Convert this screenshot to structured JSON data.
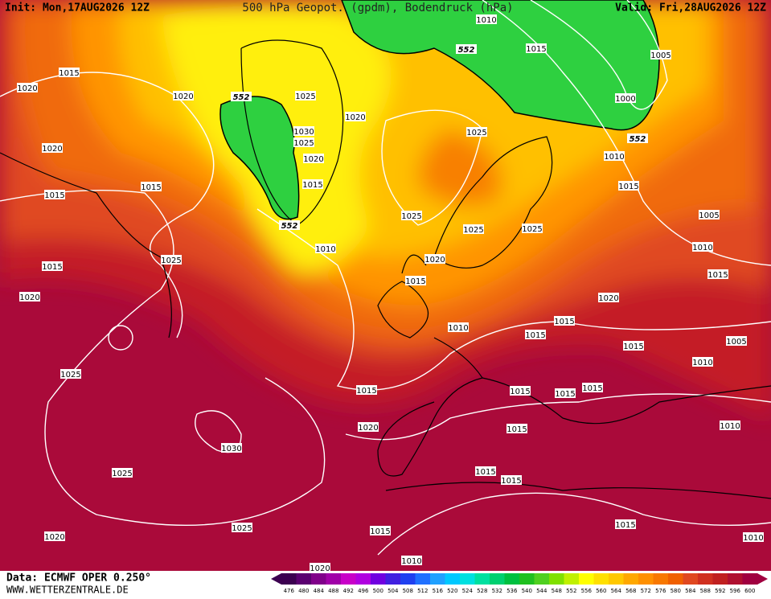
{
  "header": {
    "init": "Init: Mon,17AUG2026 12Z",
    "title": "500 hPa Geopot. (gpdm), Bodendruck (hPa)",
    "valid": "Valid: Fri,28AUG2026 12Z"
  },
  "footer": {
    "source": "Data: ECMWF OPER 0.250°",
    "site": "WWW.WETTERZENTRALE.DE"
  },
  "isobar_labels": [
    "1010",
    "1015",
    "1005",
    "1000",
    "552",
    "1020",
    "1015",
    "1020",
    "552",
    "1025",
    "1020",
    "1030",
    "1025",
    "1025",
    "552",
    "1020",
    "1020",
    "1010",
    "1015",
    "1015",
    "1015",
    "1015",
    "552",
    "1025",
    "1005",
    "1025",
    "1025",
    "1010",
    "1015",
    "1025",
    "1010",
    "1020",
    "1015",
    "1015",
    "1020",
    "1020",
    "1010",
    "1015",
    "1015",
    "1015",
    "1005",
    "1025",
    "1010",
    "1015",
    "1015",
    "1015",
    "1015",
    "1020",
    "1015",
    "1010",
    "1030",
    "1025",
    "1015",
    "1015",
    "1020",
    "1025",
    "1015",
    "1015",
    "1010",
    "1010",
    "1020"
  ],
  "colorbar": {
    "ticks": [
      476,
      480,
      484,
      488,
      492,
      496,
      500,
      504,
      508,
      512,
      516,
      520,
      524,
      528,
      532,
      536,
      540,
      544,
      548,
      552,
      556,
      560,
      564,
      568,
      572,
      576,
      580,
      584,
      588,
      592,
      596,
      600
    ],
    "colors": [
      "#3c0050",
      "#5a0070",
      "#80008a",
      "#a000a8",
      "#c800c8",
      "#b000e0",
      "#7000e0",
      "#4020e0",
      "#2040f0",
      "#2070ff",
      "#20a0ff",
      "#00c8ff",
      "#00e0e0",
      "#00e0a0",
      "#00d070",
      "#00c040",
      "#20c020",
      "#50d020",
      "#80e000",
      "#c0f000",
      "#ffff00",
      "#ffe000",
      "#ffc800",
      "#ffa800",
      "#ff9000",
      "#f87800",
      "#f06000",
      "#e04820",
      "#d03020",
      "#c02020",
      "#b01030",
      "#a00040"
    ]
  }
}
